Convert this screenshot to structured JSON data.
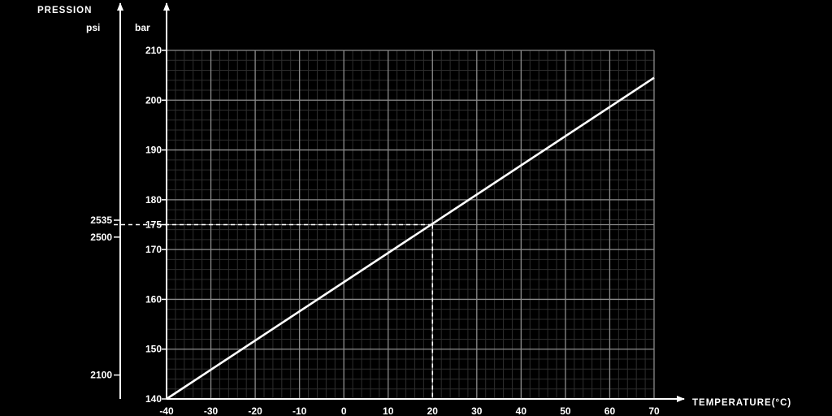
{
  "chart_data": {
    "type": "line",
    "title": "",
    "ylabel": "PRESSION",
    "xlabel": "TEMPERATURE",
    "xunit": "(°C)",
    "y_unit_left": "psi",
    "y_unit_right": "bar",
    "xlim": [
      -40,
      70
    ],
    "ylim": [
      140,
      210
    ],
    "x_ticks": [
      -40,
      -30,
      -20,
      -10,
      0,
      10,
      20,
      30,
      40,
      50,
      60,
      70
    ],
    "y_ticks": [
      140,
      150,
      160,
      170,
      175,
      180,
      190,
      200,
      210
    ],
    "psi_ticks": [
      {
        "label": "2535",
        "bar": 175.9
      },
      {
        "label": "2500",
        "bar": 172.5
      },
      {
        "label": "2100",
        "bar": 144.8
      }
    ],
    "grid": true,
    "minor_grid": true,
    "series": [
      {
        "name": "",
        "x": [
          -40,
          70
        ],
        "y": [
          140,
          204.5
        ]
      }
    ],
    "reference": {
      "x": 20,
      "y": 175
    },
    "colors": {
      "background": "#000000",
      "foreground": "#ffffff",
      "grid_major": "#8a8a8a",
      "grid_minor": "#2e2e2e"
    }
  }
}
